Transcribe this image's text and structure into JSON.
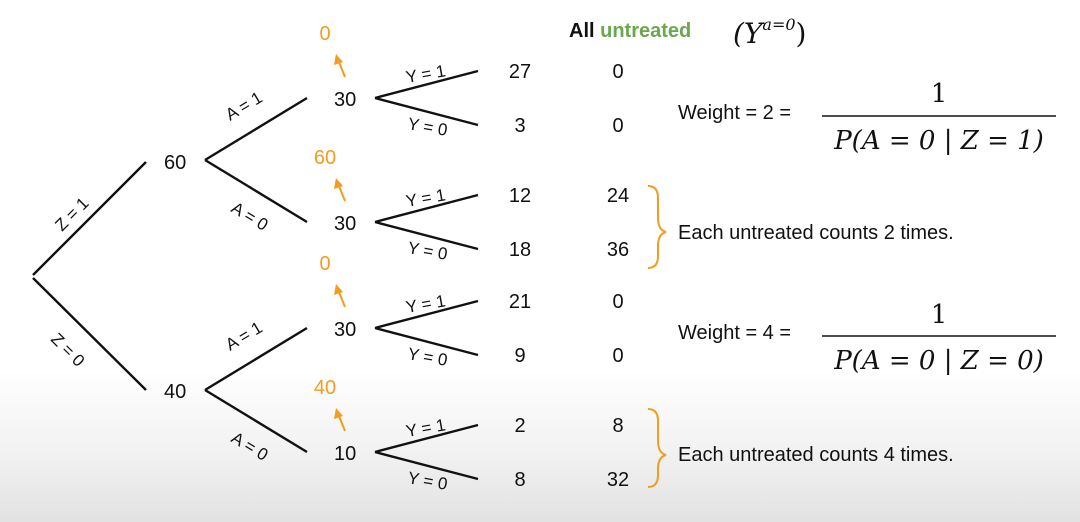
{
  "header": {
    "all": "All",
    "untreated": "untreated",
    "notation": "(Y",
    "notation_sup": "a=0",
    "notation_close": ")"
  },
  "colors": {
    "accent_green": "#6aa84f",
    "accent_orange": "#f39c1f",
    "text": "#111111"
  },
  "tree": {
    "z_labels": [
      "Z = 1",
      "Z = 0"
    ],
    "z_counts": [
      "60",
      "40"
    ],
    "a_labels": [
      "A = 1",
      "A = 0",
      "A = 1",
      "A = 0"
    ],
    "a_counts": [
      "30",
      "30",
      "30",
      "10"
    ],
    "pseudo_counts": [
      "0",
      "60",
      "0",
      "40"
    ],
    "y_labels": [
      "Y = 1",
      "Y = 0"
    ],
    "leaf_counts": [
      "27",
      "3",
      "12",
      "18",
      "21",
      "9",
      "2",
      "8"
    ],
    "untreated_counts": [
      "0",
      "0",
      "24",
      "36",
      "0",
      "0",
      "8",
      "32"
    ]
  },
  "annotations": {
    "weight1": "Weight = 2 =",
    "weight2": "Weight = 4 =",
    "numerator": "1",
    "denominator1": "P(A = 0 | Z = 1)",
    "denominator2": "P(A = 0 | Z = 0)",
    "note1": "Each untreated counts 2 times.",
    "note2": "Each untreated counts 4 times."
  }
}
